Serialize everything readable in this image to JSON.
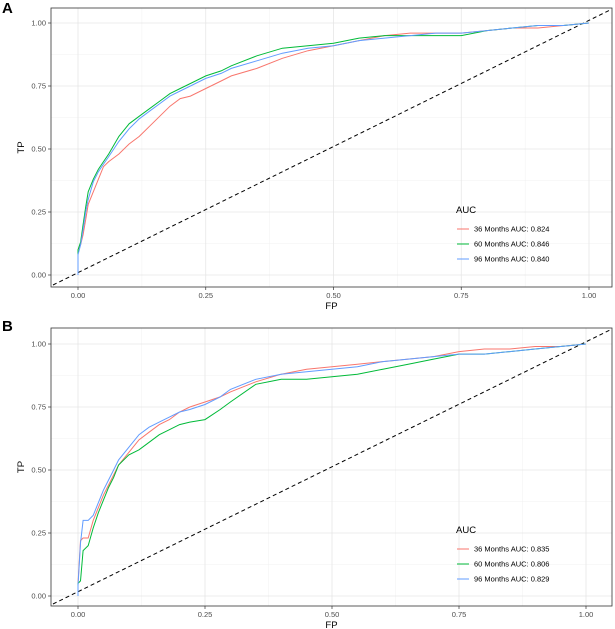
{
  "chart_data": [
    {
      "panel": "A",
      "type": "line",
      "xlabel": "FP",
      "ylabel": "TP",
      "xlim": [
        0,
        1
      ],
      "ylim": [
        0,
        1
      ],
      "grid": true,
      "xticks": [
        "0.00",
        "0.25",
        "0.50",
        "0.75",
        "1.00"
      ],
      "yticks": [
        "0.00",
        "0.25",
        "0.50",
        "0.75",
        "1.00"
      ],
      "legend": {
        "title": "AUC",
        "position": "bottom-right"
      },
      "reference_line": "diagonal-dashed",
      "series": [
        {
          "name": "36 Months AUC: 0.824",
          "color": "#F8766D",
          "x": [
            0,
            0,
            0.005,
            0.01,
            0.015,
            0.02,
            0.03,
            0.04,
            0.05,
            0.06,
            0.08,
            0.1,
            0.12,
            0.14,
            0.16,
            0.18,
            0.2,
            0.22,
            0.25,
            0.28,
            0.3,
            0.35,
            0.4,
            0.45,
            0.5,
            0.55,
            0.6,
            0.65,
            0.7,
            0.75,
            0.8,
            0.85,
            0.9,
            0.95,
            1
          ],
          "y": [
            0,
            0.1,
            0.12,
            0.16,
            0.22,
            0.28,
            0.33,
            0.38,
            0.43,
            0.45,
            0.48,
            0.52,
            0.55,
            0.59,
            0.63,
            0.67,
            0.7,
            0.71,
            0.74,
            0.77,
            0.79,
            0.82,
            0.86,
            0.89,
            0.91,
            0.93,
            0.95,
            0.96,
            0.96,
            0.96,
            0.97,
            0.98,
            0.98,
            0.99,
            1
          ]
        },
        {
          "name": "60 Months AUC: 0.846",
          "color": "#00BA38",
          "x": [
            0,
            0,
            0.005,
            0.01,
            0.015,
            0.02,
            0.03,
            0.04,
            0.05,
            0.06,
            0.08,
            0.1,
            0.12,
            0.14,
            0.16,
            0.18,
            0.2,
            0.22,
            0.25,
            0.28,
            0.3,
            0.35,
            0.4,
            0.45,
            0.5,
            0.55,
            0.6,
            0.65,
            0.7,
            0.75,
            0.8,
            0.85,
            0.9,
            0.95,
            1
          ],
          "y": [
            0,
            0.1,
            0.13,
            0.2,
            0.27,
            0.33,
            0.38,
            0.42,
            0.45,
            0.48,
            0.55,
            0.6,
            0.63,
            0.66,
            0.69,
            0.72,
            0.74,
            0.76,
            0.79,
            0.81,
            0.83,
            0.87,
            0.9,
            0.91,
            0.92,
            0.94,
            0.95,
            0.95,
            0.95,
            0.95,
            0.97,
            0.98,
            0.99,
            0.99,
            1
          ]
        },
        {
          "name": "96 Months AUC: 0.840",
          "color": "#619CFF",
          "x": [
            0,
            0,
            0.005,
            0.01,
            0.015,
            0.02,
            0.03,
            0.04,
            0.05,
            0.06,
            0.08,
            0.1,
            0.12,
            0.14,
            0.16,
            0.18,
            0.2,
            0.22,
            0.25,
            0.28,
            0.3,
            0.35,
            0.4,
            0.45,
            0.5,
            0.55,
            0.6,
            0.65,
            0.7,
            0.75,
            0.8,
            0.85,
            0.9,
            0.95,
            1
          ],
          "y": [
            0,
            0.08,
            0.12,
            0.18,
            0.25,
            0.3,
            0.37,
            0.41,
            0.44,
            0.47,
            0.53,
            0.58,
            0.62,
            0.65,
            0.68,
            0.71,
            0.73,
            0.75,
            0.78,
            0.8,
            0.82,
            0.85,
            0.88,
            0.9,
            0.91,
            0.93,
            0.94,
            0.95,
            0.96,
            0.96,
            0.97,
            0.98,
            0.99,
            0.99,
            1
          ]
        }
      ]
    },
    {
      "panel": "B",
      "type": "line",
      "xlabel": "FP",
      "ylabel": "TP",
      "xlim": [
        0,
        1
      ],
      "ylim": [
        0,
        1
      ],
      "grid": true,
      "xticks": [
        "0.00",
        "0.25",
        "0.50",
        "0.75",
        "1.00"
      ],
      "yticks": [
        "0.00",
        "0.25",
        "0.50",
        "0.75",
        "1.00"
      ],
      "legend": {
        "title": "AUC",
        "position": "bottom-right"
      },
      "reference_line": "diagonal-dashed",
      "series": [
        {
          "name": "36 Months AUC: 0.835",
          "color": "#F8766D",
          "x": [
            0,
            0,
            0.005,
            0.01,
            0.02,
            0.03,
            0.04,
            0.05,
            0.06,
            0.07,
            0.08,
            0.1,
            0.12,
            0.14,
            0.16,
            0.18,
            0.2,
            0.22,
            0.25,
            0.28,
            0.3,
            0.35,
            0.4,
            0.45,
            0.5,
            0.55,
            0.6,
            0.65,
            0.7,
            0.75,
            0.8,
            0.85,
            0.9,
            0.95,
            1
          ],
          "y": [
            0,
            0.05,
            0.22,
            0.23,
            0.23,
            0.3,
            0.35,
            0.4,
            0.44,
            0.48,
            0.52,
            0.57,
            0.62,
            0.65,
            0.68,
            0.7,
            0.73,
            0.75,
            0.77,
            0.79,
            0.81,
            0.85,
            0.88,
            0.9,
            0.91,
            0.92,
            0.93,
            0.94,
            0.95,
            0.97,
            0.98,
            0.98,
            0.99,
            0.99,
            1
          ]
        },
        {
          "name": "60 Months AUC: 0.806",
          "color": "#00BA38",
          "x": [
            0,
            0,
            0.005,
            0.01,
            0.02,
            0.03,
            0.04,
            0.05,
            0.06,
            0.07,
            0.08,
            0.1,
            0.12,
            0.14,
            0.16,
            0.18,
            0.2,
            0.22,
            0.25,
            0.28,
            0.3,
            0.35,
            0.4,
            0.45,
            0.5,
            0.55,
            0.6,
            0.65,
            0.7,
            0.75,
            0.8,
            0.85,
            0.9,
            0.95,
            1
          ],
          "y": [
            0,
            0.05,
            0.06,
            0.18,
            0.2,
            0.27,
            0.33,
            0.38,
            0.43,
            0.47,
            0.52,
            0.56,
            0.58,
            0.61,
            0.64,
            0.66,
            0.68,
            0.69,
            0.7,
            0.74,
            0.77,
            0.84,
            0.86,
            0.86,
            0.87,
            0.88,
            0.9,
            0.92,
            0.94,
            0.96,
            0.96,
            0.97,
            0.98,
            0.99,
            1
          ]
        },
        {
          "name": "96 Months AUC: 0.829",
          "color": "#619CFF",
          "x": [
            0,
            0,
            0.005,
            0.01,
            0.02,
            0.03,
            0.04,
            0.05,
            0.06,
            0.07,
            0.08,
            0.1,
            0.12,
            0.14,
            0.16,
            0.18,
            0.2,
            0.22,
            0.25,
            0.28,
            0.3,
            0.35,
            0.4,
            0.45,
            0.5,
            0.55,
            0.6,
            0.65,
            0.7,
            0.75,
            0.8,
            0.85,
            0.9,
            0.95,
            1
          ],
          "y": [
            0,
            0.04,
            0.21,
            0.3,
            0.3,
            0.32,
            0.37,
            0.42,
            0.46,
            0.5,
            0.54,
            0.59,
            0.64,
            0.67,
            0.69,
            0.71,
            0.73,
            0.74,
            0.76,
            0.79,
            0.82,
            0.86,
            0.88,
            0.89,
            0.9,
            0.91,
            0.93,
            0.94,
            0.95,
            0.96,
            0.96,
            0.97,
            0.98,
            0.99,
            1
          ]
        }
      ]
    }
  ]
}
